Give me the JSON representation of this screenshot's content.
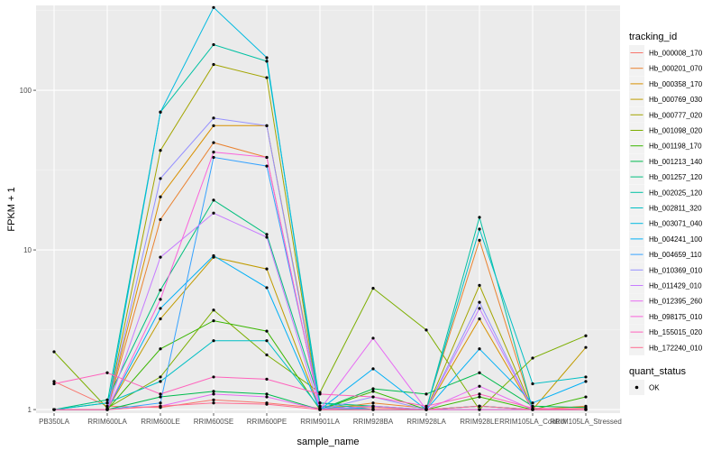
{
  "chart_data": {
    "type": "line",
    "xlabel": "sample_name",
    "ylabel": "FPKM + 1",
    "y_scale": "log10",
    "ylim": [
      0.95,
      340
    ],
    "y_ticks": [
      1,
      10,
      100
    ],
    "y_tick_labels": [
      "1",
      "10",
      "100"
    ],
    "grid": true,
    "legend_position": "right",
    "categories": [
      "PB350LA",
      "RRIM600LA",
      "RRIM600LE",
      "RRIM600SE",
      "RRIM600PE",
      "RRIM901LA",
      "RRIM928BA",
      "RRIM928LA",
      "RRIM928LE",
      "RRIM105LA_Control",
      "RRIM105LA_Stressed"
    ],
    "legend": {
      "title": "tracking_id",
      "colors": [
        "#F8766D",
        "#EA8331",
        "#D89000",
        "#C09B00",
        "#A3A500",
        "#7CAE00",
        "#39B600",
        "#00BB4E",
        "#00BF7D",
        "#00C1A3",
        "#00BFC4",
        "#00BAE0",
        "#00B0F6",
        "#35A2FF",
        "#9590FF",
        "#C77CFF",
        "#E76BF3",
        "#FA62DB",
        "#FF62BC",
        "#FF6C91"
      ]
    },
    "shape_legend": {
      "title": "quant_status",
      "label": "OK"
    },
    "series": [
      {
        "name": "Hb_000008_170",
        "values": [
          1.5,
          1.05,
          1.03,
          1.15,
          1.1,
          1.02,
          1.03,
          1.0,
          1.05,
          1.0,
          1.02
        ]
      },
      {
        "name": "Hb_000201_070",
        "values": [
          1.0,
          1.0,
          15.5,
          47,
          38,
          1.0,
          1.1,
          1.02,
          11.5,
          1.0,
          1.05
        ]
      },
      {
        "name": "Hb_000358_170",
        "values": [
          1.0,
          1.0,
          21.5,
          60,
          60,
          1.05,
          1.05,
          1.0,
          3.7,
          1.0,
          1.0
        ]
      },
      {
        "name": "Hb_000769_030",
        "values": [
          1.0,
          1.0,
          3.7,
          9.0,
          7.6,
          1.0,
          1.0,
          1.0,
          1.0,
          1.0,
          2.45
        ]
      },
      {
        "name": "Hb_000777_020",
        "values": [
          1.0,
          1.0,
          42,
          145,
          120,
          1.0,
          1.0,
          1.0,
          6.0,
          1.0,
          1.0
        ]
      },
      {
        "name": "Hb_001098_020",
        "values": [
          2.3,
          1.02,
          1.6,
          4.2,
          2.2,
          1.28,
          5.75,
          3.15,
          1.0,
          2.1,
          2.9
        ]
      },
      {
        "name": "Hb_001198_170",
        "values": [
          1.0,
          1.0,
          2.4,
          3.6,
          3.1,
          1.0,
          1.3,
          1.0,
          1.2,
          1.0,
          1.2
        ]
      },
      {
        "name": "Hb_001213_140",
        "values": [
          1.0,
          1.0,
          1.2,
          1.3,
          1.25,
          1.0,
          1.35,
          1.25,
          1.7,
          1.05,
          1.03
        ]
      },
      {
        "name": "Hb_001257_120",
        "values": [
          1.0,
          1.15,
          5.6,
          20.5,
          12.5,
          1.1,
          1.05,
          1.0,
          1.05,
          1.0,
          1.0
        ]
      },
      {
        "name": "Hb_002025_120",
        "values": [
          1.0,
          1.1,
          73,
          193,
          152,
          1.1,
          1.0,
          1.0,
          16,
          1.0,
          1.0
        ]
      },
      {
        "name": "Hb_002811_320",
        "values": [
          1.0,
          1.1,
          1.5,
          2.7,
          2.7,
          1.02,
          1.0,
          1.0,
          13.5,
          1.45,
          1.6
        ]
      },
      {
        "name": "Hb_003071_040",
        "values": [
          1.0,
          1.0,
          73,
          330,
          160,
          1.0,
          1.0,
          1.0,
          1.05,
          1.0,
          1.0
        ]
      },
      {
        "name": "Hb_004241_100",
        "values": [
          1.0,
          1.0,
          4.3,
          9.2,
          5.8,
          1.0,
          1.8,
          1.0,
          2.4,
          1.1,
          1.5
        ]
      },
      {
        "name": "Hb_004659_110",
        "values": [
          1.0,
          1.0,
          1.1,
          38,
          33.5,
          1.05,
          1.0,
          1.0,
          1.0,
          1.0,
          1.0
        ]
      },
      {
        "name": "Hb_010369_010",
        "values": [
          1.0,
          1.0,
          28,
          67,
          60,
          1.0,
          1.2,
          1.0,
          4.7,
          1.0,
          1.0
        ]
      },
      {
        "name": "Hb_011429_010",
        "values": [
          1.0,
          1.0,
          9.0,
          17,
          12,
          1.0,
          1.05,
          1.0,
          4.3,
          1.0,
          1.0
        ]
      },
      {
        "name": "Hb_012395_260",
        "values": [
          1.0,
          1.0,
          1.05,
          1.25,
          1.2,
          1.0,
          2.8,
          1.0,
          1.4,
          1.0,
          1.0
        ]
      },
      {
        "name": "Hb_098175_010",
        "values": [
          1.0,
          1.0,
          4.9,
          41,
          38,
          1.0,
          1.0,
          1.0,
          1.0,
          1.0,
          1.0
        ]
      },
      {
        "name": "Hb_155015_020",
        "values": [
          1.45,
          1.7,
          1.25,
          1.6,
          1.55,
          1.25,
          1.2,
          1.05,
          1.25,
          1.02,
          1.0
        ]
      },
      {
        "name": "Hb_172240_010",
        "values": [
          1.0,
          1.0,
          1.05,
          1.1,
          1.08,
          1.0,
          1.0,
          1.0,
          1.05,
          1.0,
          1.0
        ]
      }
    ]
  }
}
